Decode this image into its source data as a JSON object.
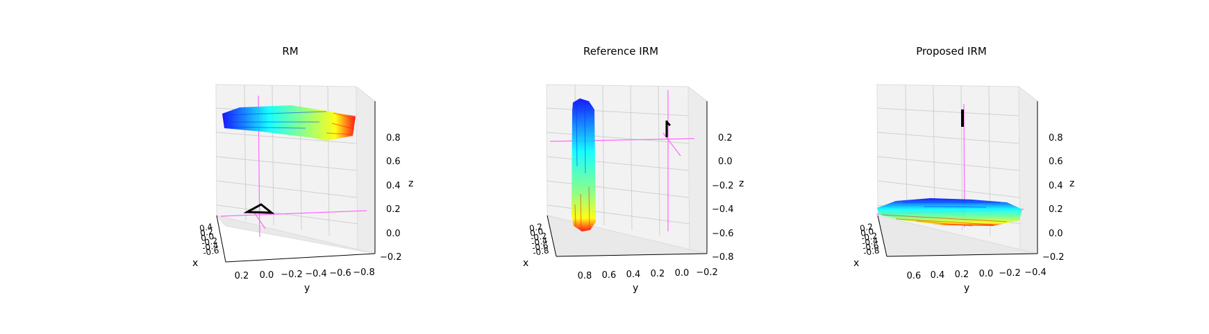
{
  "figure": {
    "background_color": "#ffffff",
    "pane_color": "#f2f2f2",
    "grid_color": "#d0d0d0",
    "marker_line_color": "#ff66ff",
    "camera_color": "#000000",
    "colormap": "jet"
  },
  "chart_data": [
    {
      "type": "3d-surface-points",
      "title": "RM",
      "xlabel": "x",
      "ylabel": "y",
      "zlabel": "z",
      "x_ticks": [
        "0.4",
        "0.2",
        "0.0",
        "-0.2",
        "-0.4",
        "-0.6",
        "-0.8"
      ],
      "y_ticks": [
        "0.2",
        "0.0",
        "−0.2",
        "−0.4",
        "−0.6",
        "−0.8"
      ],
      "z_ticks": [
        "0.8",
        "0.6",
        "0.4",
        "0.2",
        "0.0",
        "−0.2"
      ],
      "ylim": [
        0.3,
        -0.9
      ],
      "zlim": [
        -0.2,
        1.0
      ],
      "grid": true,
      "point_cloud": {
        "orientation": "horizontal",
        "y_range": [
          0.35,
          -0.8
        ],
        "z_range": [
          0.88,
          0.98
        ],
        "description": "flattened slab"
      },
      "camera": {
        "y": 0.0,
        "z": 0.2,
        "shape": "triangle"
      }
    },
    {
      "type": "3d-surface-points",
      "title": "Reference IRM",
      "xlabel": "x",
      "ylabel": "y",
      "zlabel": "z",
      "x_ticks": [
        "0.2",
        "0.0",
        "-0.2",
        "-0.4",
        "-0.6",
        "-0.8"
      ],
      "y_ticks": [
        "0.8",
        "0.6",
        "0.4",
        "0.2",
        "0.0",
        "−0.2"
      ],
      "z_ticks": [
        "0.2",
        "0.0",
        "−0.2",
        "−0.4",
        "−0.6",
        "−0.8"
      ],
      "ylim": [
        1.0,
        -0.25
      ],
      "zlim": [
        -0.8,
        0.4
      ],
      "grid": true,
      "point_cloud": {
        "orientation": "vertical",
        "y_range": [
          0.88,
          0.75
        ],
        "z_range": [
          0.35,
          -0.7
        ],
        "description": "upright slab"
      },
      "camera": {
        "y": 0.15,
        "z": 0.2,
        "shape": "line"
      }
    },
    {
      "type": "3d-surface-points",
      "title": "Proposed IRM",
      "xlabel": "x",
      "ylabel": "y",
      "zlabel": "z",
      "x_ticks": [
        "0.2",
        "0.0",
        "-0.2",
        "-0.4",
        "-0.6",
        "-0.8"
      ],
      "y_ticks": [
        "0.6",
        "0.4",
        "0.2",
        "0.0",
        "−0.2",
        "−0.4"
      ],
      "z_ticks": [
        "0.8",
        "0.6",
        "0.4",
        "0.2",
        "0.0",
        "−0.2"
      ],
      "ylim": [
        0.75,
        -0.5
      ],
      "zlim": [
        -0.2,
        1.0
      ],
      "grid": true,
      "point_cloud": {
        "orientation": "horizontal",
        "y_range": [
          0.75,
          -0.45
        ],
        "z_range": [
          0.12,
          0.28
        ],
        "description": "flattened disk"
      },
      "camera": {
        "y": 0.1,
        "z": 0.85,
        "shape": "line"
      }
    }
  ]
}
